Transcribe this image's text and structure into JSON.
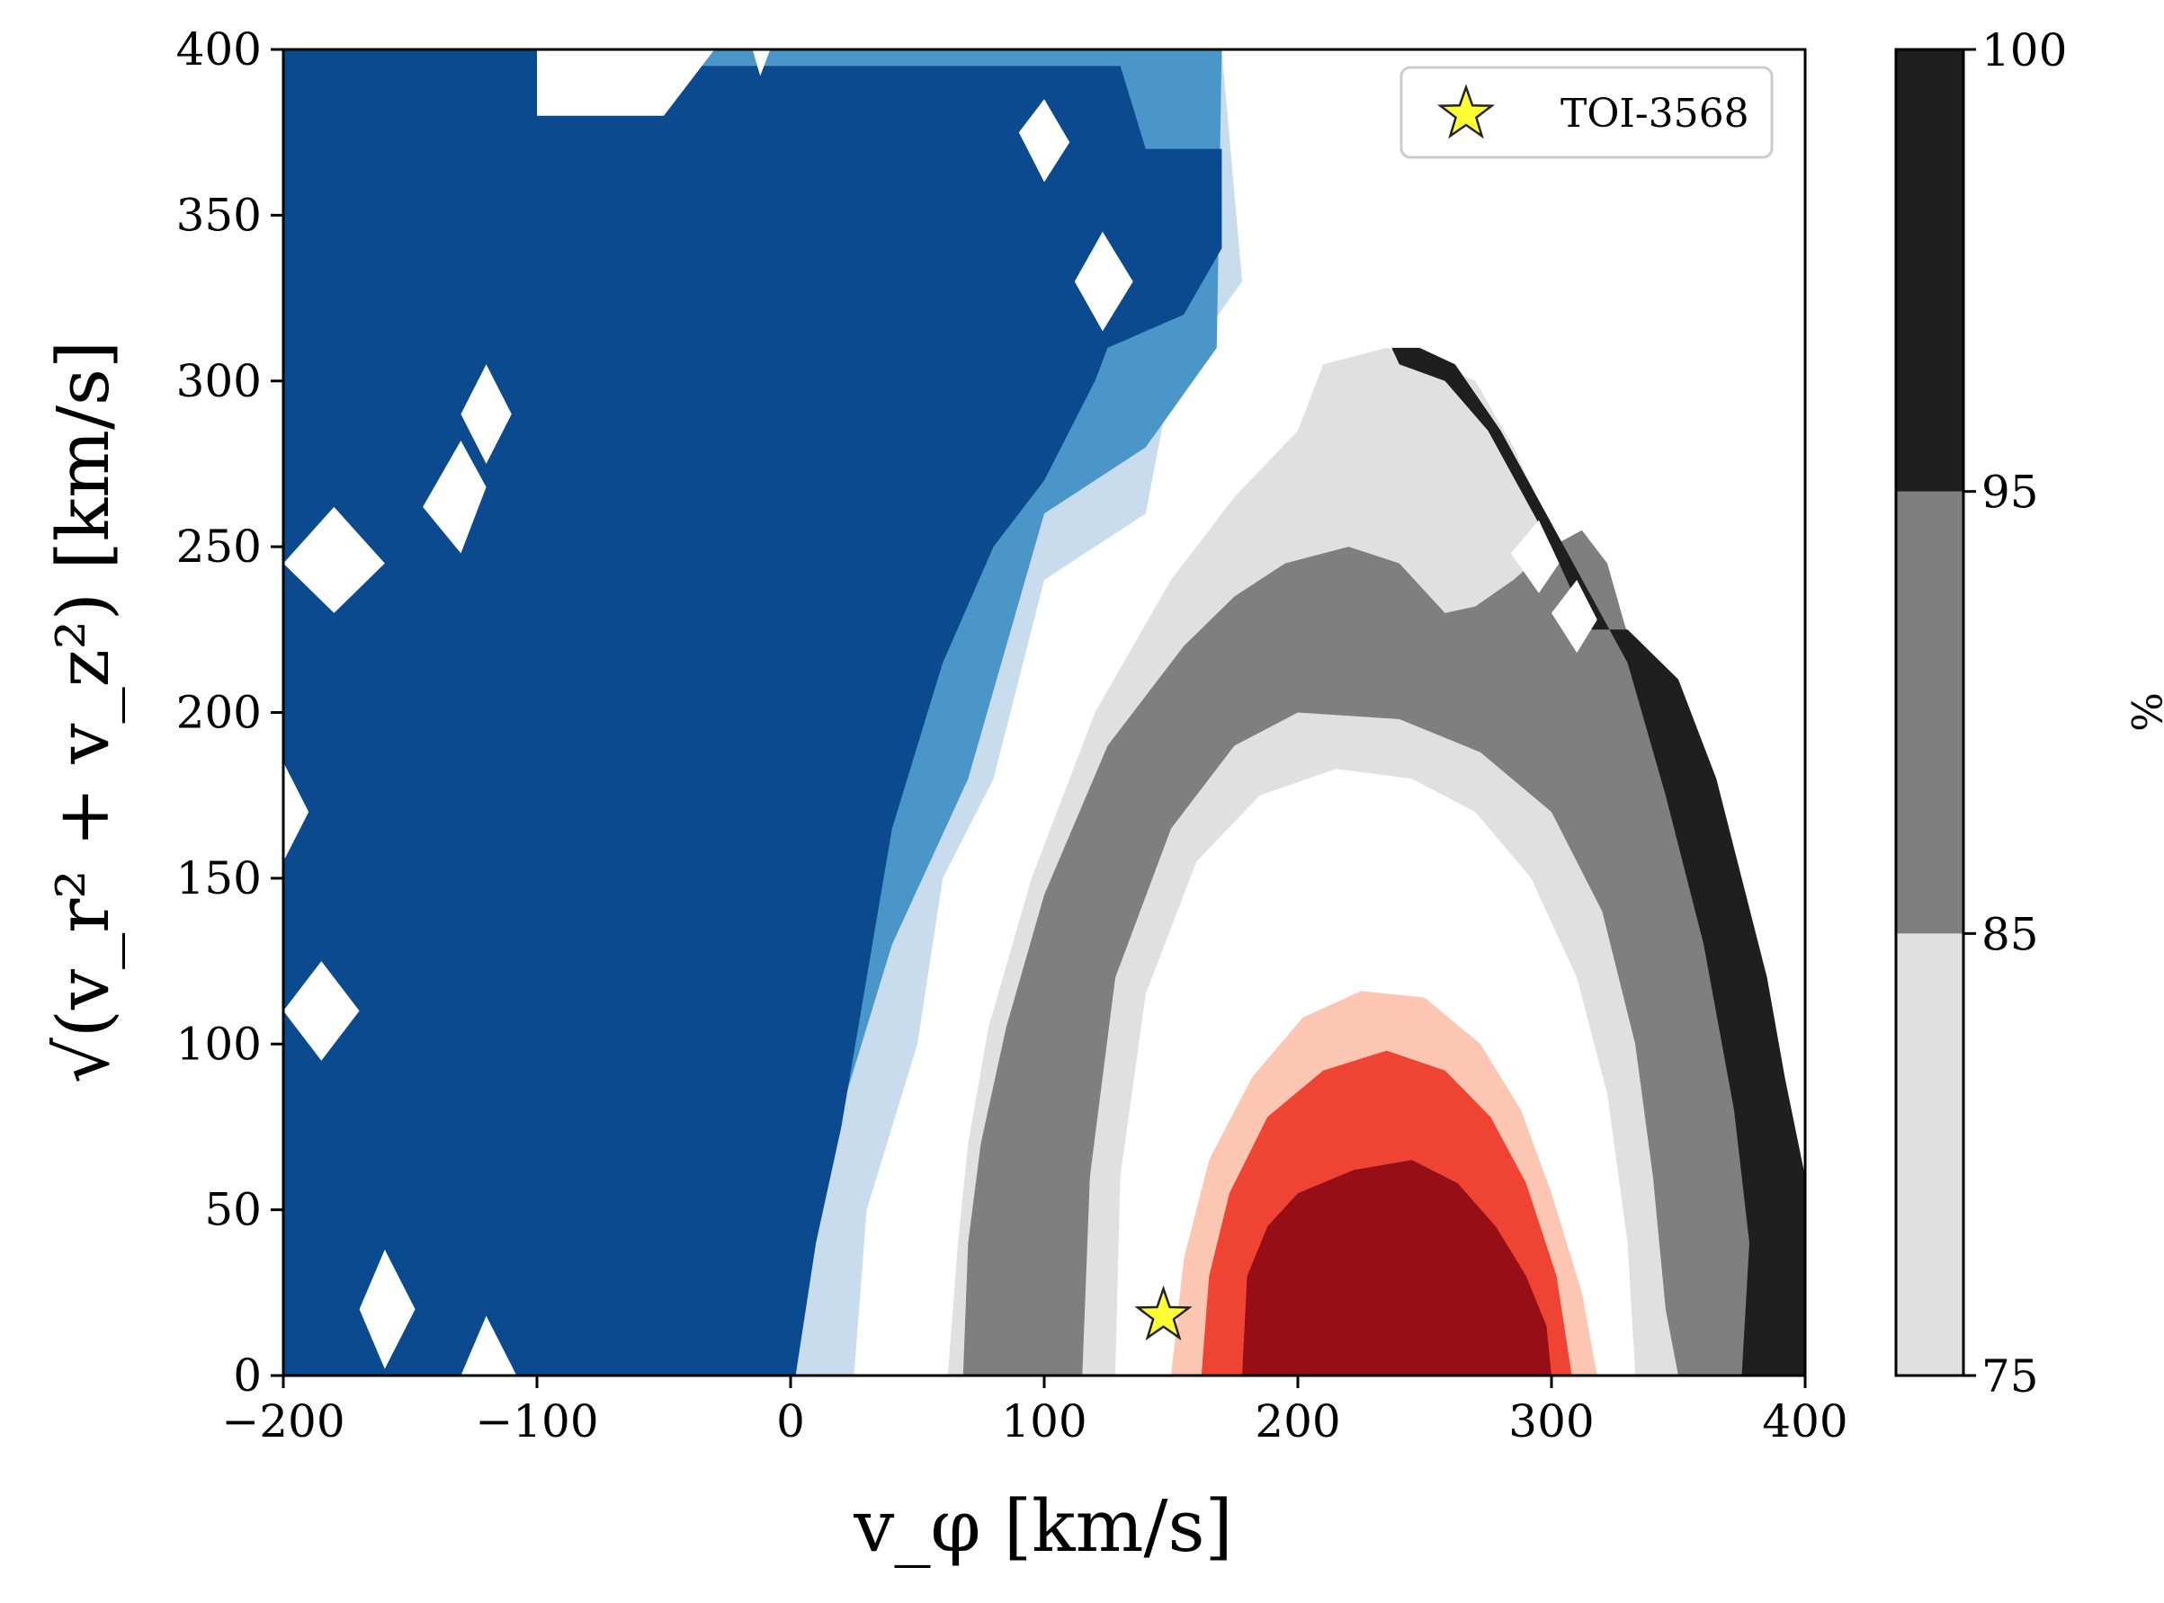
{
  "chart_data": {
    "type": "contour",
    "xlabel": "v_φ [km/s]",
    "ylabel": "√(v_r² + v_z²) [km/s]",
    "xlim": [
      -200,
      400
    ],
    "ylim": [
      0,
      400
    ],
    "xticks": [
      "−200",
      "−100",
      "0",
      "100",
      "200",
      "300",
      "400"
    ],
    "yticks": [
      "0",
      "50",
      "100",
      "150",
      "200",
      "250",
      "300",
      "350",
      "400"
    ],
    "legend": {
      "placement": "top-right",
      "entries": [
        {
          "label": "TOI-3568",
          "marker": "star",
          "color": "#ffff33"
        }
      ]
    },
    "point": {
      "name": "TOI-3568",
      "x": 147,
      "y": 18
    },
    "colorbar": {
      "label": "%",
      "ticks": [
        "75",
        "85",
        "95",
        "100"
      ],
      "bands": [
        {
          "from": 75,
          "to": 85,
          "color": "#e0e0e0"
        },
        {
          "from": 85,
          "to": 95,
          "color": "#7f7f7f"
        },
        {
          "from": 95,
          "to": 100,
          "color": "#1f1f1f"
        }
      ]
    },
    "regions": [
      {
        "name": "halo-blue-light",
        "color": "#c9dcee",
        "points": [
          [
            -200,
            0
          ],
          [
            -200,
            400
          ],
          [
            170,
            400
          ],
          [
            178,
            330
          ],
          [
            150,
            300
          ],
          [
            140,
            260
          ],
          [
            100,
            240
          ],
          [
            80,
            180
          ],
          [
            60,
            150
          ],
          [
            50,
            100
          ],
          [
            30,
            50
          ],
          [
            25,
            0
          ]
        ]
      },
      {
        "name": "halo-blue-mid",
        "color": "#4a96c9",
        "points": [
          [
            -200,
            0
          ],
          [
            -200,
            400
          ],
          [
            170,
            400
          ],
          [
            168,
            310
          ],
          [
            140,
            280
          ],
          [
            100,
            260
          ],
          [
            70,
            180
          ],
          [
            40,
            130
          ],
          [
            20,
            80
          ],
          [
            8,
            40
          ],
          [
            2,
            0
          ]
        ]
      },
      {
        "name": "halo-blue-dark",
        "color": "#0b4a8f",
        "points": [
          [
            -200,
            0
          ],
          [
            -200,
            400
          ],
          [
            -100,
            400
          ],
          [
            -100,
            395
          ],
          [
            130,
            395
          ],
          [
            140,
            370
          ],
          [
            170,
            370
          ],
          [
            170,
            340
          ],
          [
            155,
            320
          ],
          [
            140,
            315
          ],
          [
            125,
            310
          ],
          [
            120,
            300
          ],
          [
            100,
            270
          ],
          [
            80,
            250
          ],
          [
            60,
            215
          ],
          [
            40,
            165
          ],
          [
            30,
            120
          ],
          [
            20,
            75
          ],
          [
            10,
            40
          ],
          [
            2,
            0
          ]
        ]
      },
      {
        "name": "thick-disc-light",
        "color": "#e0e0e0",
        "points": [
          [
            62,
            0
          ],
          [
            66,
            40
          ],
          [
            70,
            70
          ],
          [
            78,
            105
          ],
          [
            95,
            150
          ],
          [
            120,
            200
          ],
          [
            150,
            240
          ],
          [
            175,
            265
          ],
          [
            200,
            285
          ],
          [
            210,
            305
          ],
          [
            235,
            310
          ],
          [
            255,
            305
          ],
          [
            270,
            300
          ],
          [
            285,
            280
          ],
          [
            300,
            255
          ],
          [
            318,
            240
          ],
          [
            330,
            225
          ],
          [
            343,
            205
          ],
          [
            360,
            160
          ],
          [
            370,
            110
          ],
          [
            385,
            60
          ],
          [
            392,
            0
          ]
        ]
      },
      {
        "name": "thick-disc-mid",
        "color": "#7f7f7f",
        "points": [
          [
            68,
            0
          ],
          [
            70,
            40
          ],
          [
            75,
            70
          ],
          [
            85,
            105
          ],
          [
            100,
            145
          ],
          [
            125,
            190
          ],
          [
            155,
            220
          ],
          [
            175,
            235
          ],
          [
            195,
            245
          ],
          [
            220,
            250
          ],
          [
            240,
            245
          ],
          [
            258,
            230
          ],
          [
            270,
            232
          ],
          [
            285,
            240
          ],
          [
            300,
            250
          ],
          [
            312,
            255
          ],
          [
            322,
            245
          ],
          [
            335,
            210
          ],
          [
            345,
            190
          ],
          [
            360,
            150
          ],
          [
            370,
            110
          ],
          [
            378,
            70
          ],
          [
            385,
            40
          ],
          [
            392,
            0
          ]
        ]
      },
      {
        "name": "thick-disc-dark",
        "color": "#1f1f1f",
        "points": [
          [
            248,
            310
          ],
          [
            237,
            310
          ],
          [
            240,
            305
          ],
          [
            258,
            300
          ],
          [
            275,
            285
          ],
          [
            300,
            250
          ],
          [
            315,
            225
          ],
          [
            330,
            225
          ],
          [
            350,
            210
          ],
          [
            365,
            180
          ],
          [
            375,
            150
          ],
          [
            385,
            120
          ],
          [
            392,
            90
          ],
          [
            400,
            60
          ],
          [
            400,
            0
          ],
          [
            375,
            0
          ],
          [
            378,
            40
          ],
          [
            372,
            80
          ],
          [
            360,
            130
          ],
          [
            345,
            175
          ],
          [
            330,
            215
          ],
          [
            305,
            250
          ],
          [
            280,
            285
          ],
          [
            262,
            305
          ]
        ]
      },
      {
        "name": "thin-disc-gray-core",
        "color": "#e0e0e0",
        "points": [
          [
            115,
            0
          ],
          [
            118,
            60
          ],
          [
            128,
            120
          ],
          [
            150,
            165
          ],
          [
            175,
            190
          ],
          [
            200,
            200
          ],
          [
            240,
            198
          ],
          [
            272,
            188
          ],
          [
            300,
            170
          ],
          [
            320,
            140
          ],
          [
            333,
            100
          ],
          [
            340,
            60
          ],
          [
            345,
            20
          ],
          [
            350,
            0
          ]
        ]
      },
      {
        "name": "thin-disc-white-core",
        "color": "#ffffff",
        "points": [
          [
            128,
            0
          ],
          [
            130,
            60
          ],
          [
            140,
            115
          ],
          [
            160,
            155
          ],
          [
            185,
            175
          ],
          [
            215,
            183
          ],
          [
            245,
            180
          ],
          [
            270,
            170
          ],
          [
            292,
            150
          ],
          [
            310,
            120
          ],
          [
            322,
            85
          ],
          [
            330,
            40
          ],
          [
            333,
            0
          ]
        ]
      },
      {
        "name": "thin-disc-pink",
        "color": "#fcc6b2",
        "points": [
          [
            150,
            0
          ],
          [
            155,
            35
          ],
          [
            165,
            65
          ],
          [
            182,
            90
          ],
          [
            202,
            108
          ],
          [
            225,
            116
          ],
          [
            250,
            114
          ],
          [
            272,
            100
          ],
          [
            288,
            80
          ],
          [
            300,
            55
          ],
          [
            312,
            25
          ],
          [
            318,
            0
          ]
        ]
      },
      {
        "name": "thin-disc-red",
        "color": "#ef4433",
        "points": [
          [
            162,
            0
          ],
          [
            165,
            30
          ],
          [
            173,
            55
          ],
          [
            188,
            78
          ],
          [
            210,
            92
          ],
          [
            235,
            98
          ],
          [
            258,
            92
          ],
          [
            276,
            78
          ],
          [
            290,
            58
          ],
          [
            302,
            30
          ],
          [
            308,
            0
          ]
        ]
      },
      {
        "name": "thin-disc-darkred",
        "color": "#980e16",
        "points": [
          [
            178,
            0
          ],
          [
            180,
            30
          ],
          [
            188,
            45
          ],
          [
            200,
            55
          ],
          [
            222,
            62
          ],
          [
            245,
            65
          ],
          [
            263,
            58
          ],
          [
            278,
            45
          ],
          [
            290,
            30
          ],
          [
            298,
            15
          ],
          [
            300,
            0
          ]
        ]
      }
    ],
    "holes": [
      {
        "name": "white-hole",
        "points": [
          [
            -100,
            400
          ],
          [
            -100,
            380
          ],
          [
            -50,
            380
          ],
          [
            -30,
            400
          ]
        ]
      },
      {
        "name": "white-hole",
        "points": [
          [
            -15,
            400
          ],
          [
            -12,
            392
          ],
          [
            -8,
            400
          ]
        ]
      },
      {
        "name": "white-hole",
        "points": [
          [
            -130,
            290
          ],
          [
            -120,
            305
          ],
          [
            -110,
            290
          ],
          [
            -120,
            275
          ]
        ]
      },
      {
        "name": "white-hole",
        "points": [
          [
            -145,
            262
          ],
          [
            -130,
            282
          ],
          [
            -120,
            268
          ],
          [
            -130,
            248
          ]
        ]
      },
      {
        "name": "white-hole",
        "points": [
          [
            -200,
            245
          ],
          [
            -180,
            230
          ],
          [
            -160,
            245
          ],
          [
            -180,
            262
          ]
        ]
      },
      {
        "name": "white-hole",
        "points": [
          [
            -200,
            185
          ],
          [
            -190,
            170
          ],
          [
            -200,
            155
          ]
        ]
      },
      {
        "name": "white-hole",
        "points": [
          [
            -200,
            110
          ],
          [
            -185,
            125
          ],
          [
            -170,
            110
          ],
          [
            -185,
            95
          ]
        ]
      },
      {
        "name": "white-hole",
        "points": [
          [
            -170,
            20
          ],
          [
            -160,
            38
          ],
          [
            -148,
            20
          ],
          [
            -160,
            2
          ]
        ]
      },
      {
        "name": "white-hole",
        "points": [
          [
            -130,
            0
          ],
          [
            -120,
            18
          ],
          [
            -108,
            0
          ]
        ]
      },
      {
        "name": "white-hole",
        "points": [
          [
            90,
            375
          ],
          [
            100,
            385
          ],
          [
            110,
            372
          ],
          [
            100,
            360
          ]
        ]
      },
      {
        "name": "white-hole",
        "points": [
          [
            112,
            330
          ],
          [
            123,
            345
          ],
          [
            135,
            330
          ],
          [
            123,
            315
          ]
        ]
      },
      {
        "name": "white-hole",
        "points": [
          [
            284,
            248
          ],
          [
            295,
            258
          ],
          [
            303,
            245
          ],
          [
            295,
            236
          ]
        ]
      },
      {
        "name": "white-hole",
        "points": [
          [
            300,
            230
          ],
          [
            310,
            240
          ],
          [
            318,
            228
          ],
          [
            310,
            218
          ]
        ]
      }
    ]
  }
}
